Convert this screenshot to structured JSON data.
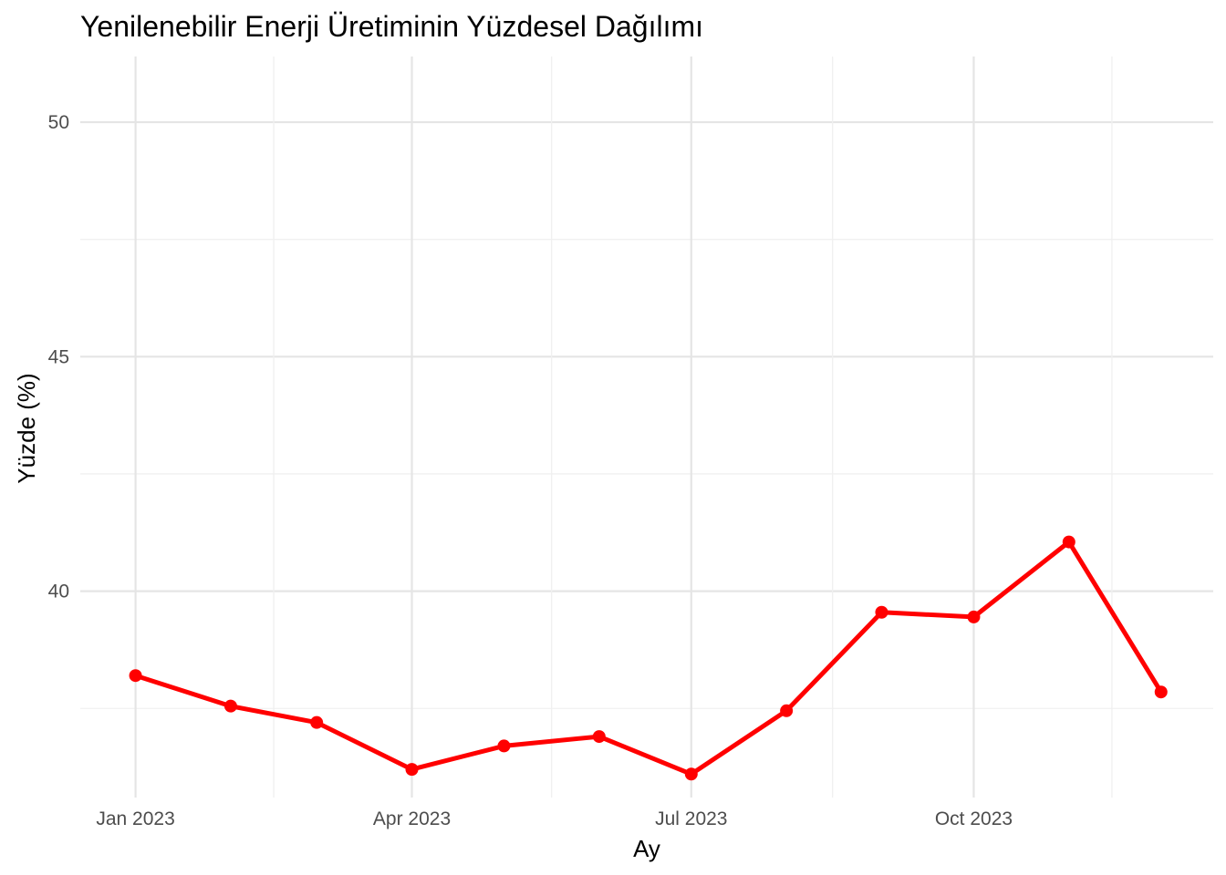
{
  "chart_data": {
    "type": "line",
    "title": "Yenilenebilir Enerji Üretiminin Yüzdesel Dağılımı",
    "xlabel": "Ay",
    "ylabel": "Yüzde (%)",
    "x_ticks": [
      "Jan 2023",
      "Apr 2023",
      "Jul 2023",
      "Oct 2023"
    ],
    "y_ticks": [
      40,
      45,
      50
    ],
    "ylim": [
      35.6,
      51.4
    ],
    "xlim": [
      "2022-12-14",
      "2023-12-18"
    ],
    "grid": true,
    "legend": "none",
    "series": [
      {
        "color": "#ff0000",
        "points": [
          {
            "x": "2023-01-01",
            "y": 38.2
          },
          {
            "x": "2023-02-01",
            "y": 37.55
          },
          {
            "x": "2023-03-01",
            "y": 37.2
          },
          {
            "x": "2023-04-01",
            "y": 36.2
          },
          {
            "x": "2023-05-01",
            "y": 36.7
          },
          {
            "x": "2023-06-01",
            "y": 36.9
          },
          {
            "x": "2023-07-01",
            "y": 36.1
          },
          {
            "x": "2023-08-01",
            "y": 37.45
          },
          {
            "x": "2023-09-01",
            "y": 39.55
          },
          {
            "x": "2023-10-01",
            "y": 39.45
          },
          {
            "x": "2023-11-01",
            "y": 41.05
          },
          {
            "x": "2023-12-01",
            "y": 37.85
          }
        ]
      }
    ]
  }
}
